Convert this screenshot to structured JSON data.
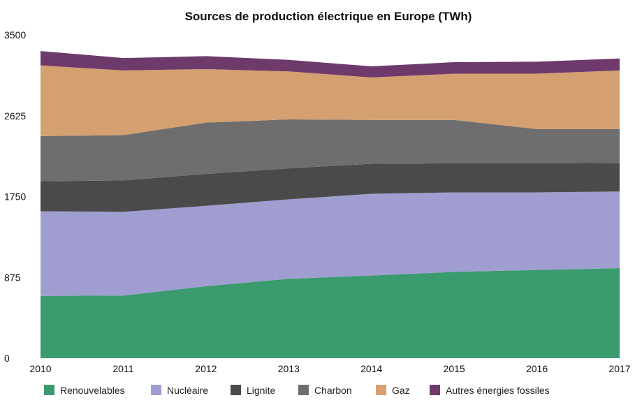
{
  "chart_data": {
    "type": "area",
    "stacked": true,
    "title": "Sources de production électrique en Europe (TWh)",
    "xlabel": "",
    "ylabel": "",
    "x": [
      "2010",
      "2011",
      "2012",
      "2013",
      "2014",
      "2015",
      "2016",
      "2017"
    ],
    "ylim": [
      0,
      3500
    ],
    "yticks": [
      "0",
      "875",
      "1750",
      "2625",
      "3500"
    ],
    "grid": false,
    "legend": "bottom",
    "series": [
      {
        "name": "Renouvelables",
        "color": "#3a9b6e",
        "values": [
          675,
          678,
          780,
          860,
          895,
          935,
          955,
          975
        ]
      },
      {
        "name": "Nucléaire",
        "color": "#a09ed0",
        "values": [
          915,
          907,
          870,
          860,
          885,
          860,
          840,
          830
        ]
      },
      {
        "name": "Lignite",
        "color": "#4a4a4a",
        "values": [
          325,
          340,
          345,
          335,
          325,
          315,
          315,
          310
        ]
      },
      {
        "name": "Charbon",
        "color": "#6e6e6e",
        "values": [
          490,
          490,
          555,
          530,
          475,
          470,
          370,
          365
        ]
      },
      {
        "name": "Gaz",
        "color": "#d4a070",
        "values": [
          765,
          700,
          580,
          520,
          460,
          500,
          600,
          635
        ]
      },
      {
        "name": "Autres énergies fossiles",
        "color": "#6e3a6c",
        "values": [
          155,
          135,
          140,
          125,
          120,
          125,
          130,
          130
        ]
      }
    ]
  }
}
